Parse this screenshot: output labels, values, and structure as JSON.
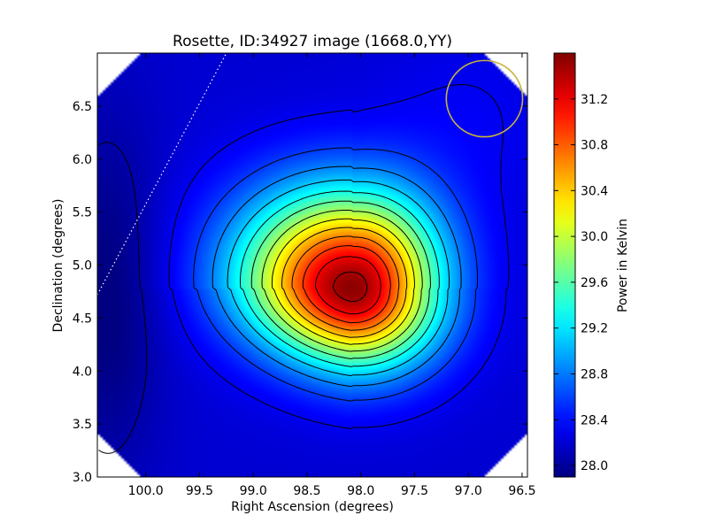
{
  "chart_data": {
    "type": "heatmap",
    "title": "Rosette, ID:34927 image (1668.0,YY)",
    "xlabel": "Right Ascension (degrees)",
    "ylabel": "Declination (degrees)",
    "colorbar_label": "Power in Kelvin",
    "xlim": [
      100.45,
      96.45
    ],
    "ylim": [
      3.0,
      7.0
    ],
    "xticks": [
      100.0,
      99.5,
      99.0,
      98.5,
      98.0,
      97.5,
      97.0,
      96.5
    ],
    "xtick_labels": [
      "100.0",
      "99.5",
      "99.0",
      "98.5",
      "98.0",
      "97.5",
      "97.0",
      "96.5"
    ],
    "yticks": [
      3.0,
      3.5,
      4.0,
      4.5,
      5.0,
      5.5,
      6.0,
      6.5
    ],
    "ytick_labels": [
      "3.0",
      "3.5",
      "4.0",
      "4.5",
      "5.0",
      "5.5",
      "6.0",
      "6.5"
    ],
    "colorbar_range": [
      27.9,
      31.6
    ],
    "colorbar_ticks": [
      28.0,
      28.4,
      28.8,
      29.2,
      29.6,
      30.0,
      30.4,
      30.8,
      31.2
    ],
    "colorbar_tick_labels": [
      "28.0",
      "28.4",
      "28.8",
      "29.2",
      "29.6",
      "30.0",
      "30.4",
      "30.8",
      "31.2"
    ],
    "colormap": "jet",
    "peak": {
      "ra": 98.08,
      "dec": 4.78,
      "value": 31.55
    },
    "background_level": 28.2,
    "beam_circle": {
      "ra": 96.85,
      "dec": 6.57,
      "radius_deg": 0.36,
      "color": "#c8b43c"
    },
    "galactic_plane_line": {
      "from": [
        100.45,
        4.72
      ],
      "to": [
        99.25,
        7.0
      ],
      "style": "dotted",
      "color": "#ffffff"
    },
    "contours": {
      "color": "#000000",
      "style": "solid",
      "count": 14
    },
    "grid": false
  }
}
